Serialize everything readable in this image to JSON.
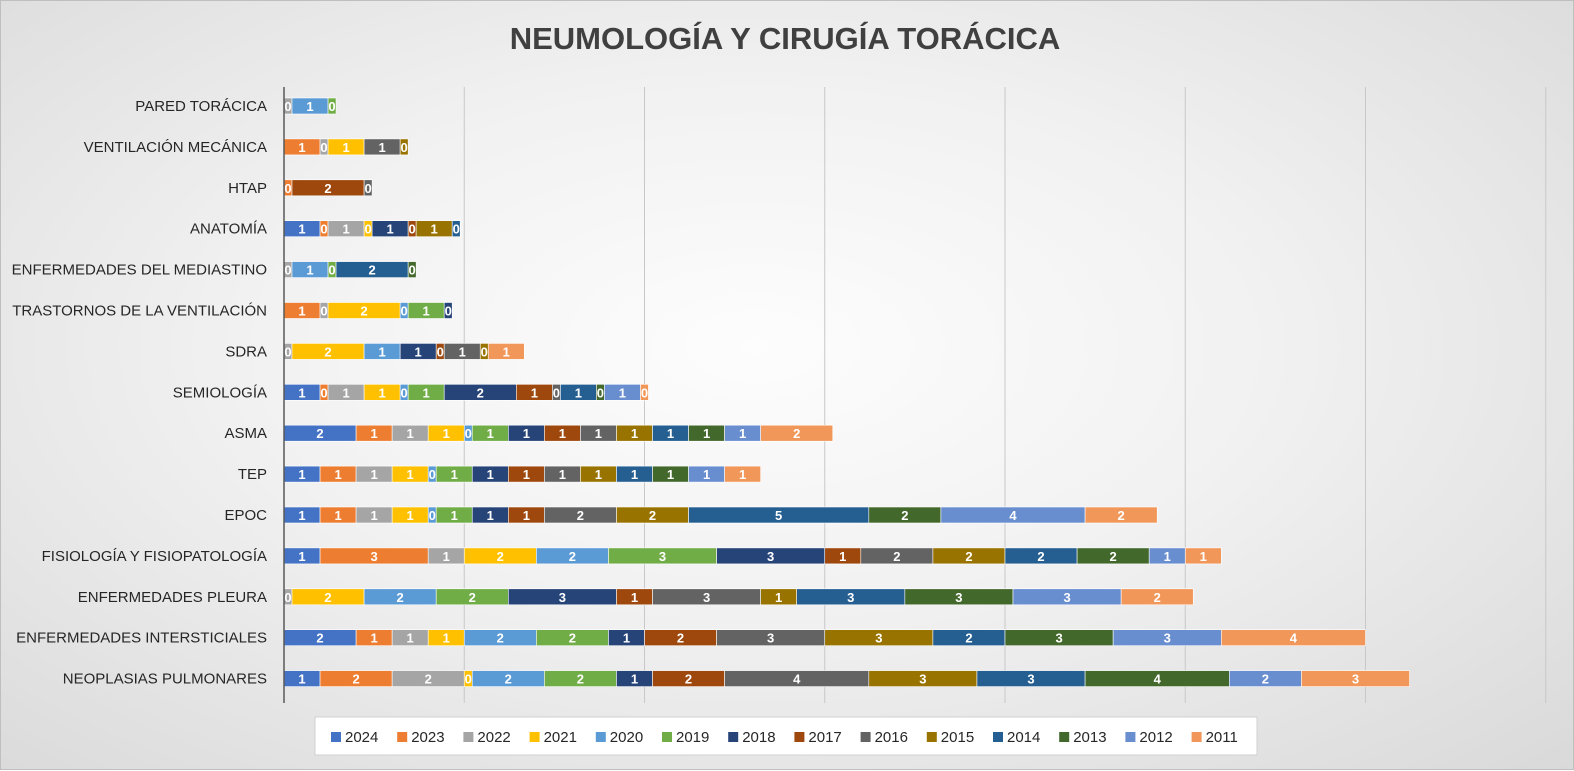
{
  "chart_data": {
    "type": "bar",
    "orientation": "horizontal",
    "stacked": true,
    "title": "NEUMOLOGÍA Y CIRUGÍA TORÁCICA",
    "xlabel": "",
    "ylabel": "",
    "xlim": [
      0,
      36
    ],
    "grid": true,
    "legend_position": "bottom",
    "categories": [
      "PARED TORÁCICA",
      "VENTILACIÓN MECÁNICA",
      "HTAP",
      "ANATOMÍA",
      "ENFERMEDADES DEL MEDIASTINO",
      "TRASTORNOS DE LA VENTILACIÓN",
      "SDRA",
      "SEMIOLOGÍA",
      "ASMA",
      "TEP",
      "EPOC",
      "FISIOLOGÍA Y FISIOPATOLOGÍA",
      "ENFERMEDADES PLEURA",
      "ENFERMEDADES INTERSTICIALES",
      "NEOPLASIAS PULMONARES"
    ],
    "series": [
      {
        "name": "2024",
        "color": "#4472C4",
        "values": [
          null,
          null,
          null,
          1,
          null,
          null,
          null,
          1,
          2,
          1,
          1,
          1,
          null,
          2,
          1
        ],
        "labels": [
          null,
          null,
          null,
          "1",
          null,
          null,
          null,
          "1",
          "2",
          "1",
          "1",
          "1",
          null,
          "2",
          "1"
        ]
      },
      {
        "name": "2023",
        "color": "#ED7D31",
        "values": [
          null,
          1,
          0,
          0,
          null,
          1,
          null,
          0,
          1,
          1,
          1,
          3,
          null,
          1,
          2
        ],
        "labels": [
          null,
          "1",
          "0",
          "0",
          null,
          "1",
          null,
          "0",
          "1",
          "1",
          "1",
          "3",
          null,
          "1",
          "2"
        ]
      },
      {
        "name": "2022",
        "color": "#A5A5A5",
        "values": [
          0,
          0,
          null,
          1,
          0,
          0,
          0,
          1,
          1,
          1,
          1,
          1,
          0,
          1,
          2
        ],
        "labels": [
          "0",
          "0",
          null,
          "1",
          "0",
          "0",
          "0",
          "1",
          "1",
          "1",
          "1",
          "1",
          "0",
          "1",
          "2"
        ]
      },
      {
        "name": "2021",
        "color": "#FFC000",
        "values": [
          null,
          1,
          null,
          0,
          null,
          2,
          2,
          1,
          1,
          1,
          1,
          2,
          2,
          1,
          0
        ],
        "labels": [
          null,
          "1",
          null,
          "0",
          null,
          "2",
          "2",
          "1",
          "1",
          "1",
          "1",
          "2",
          "2",
          "1",
          "0"
        ]
      },
      {
        "name": "2020",
        "color": "#5B9BD5",
        "values": [
          1,
          null,
          null,
          null,
          1,
          0,
          1,
          0,
          0,
          0,
          0,
          2,
          2,
          2,
          2
        ],
        "labels": [
          "1",
          null,
          null,
          null,
          "1",
          "0",
          "1",
          "0",
          "0",
          "0",
          "0",
          "2",
          "2",
          "2",
          "2"
        ]
      },
      {
        "name": "2019",
        "color": "#70AD47",
        "values": [
          0,
          null,
          null,
          null,
          0,
          1,
          null,
          1,
          1,
          1,
          1,
          3,
          2,
          2,
          2
        ],
        "labels": [
          "0",
          null,
          null,
          null,
          "0",
          "1",
          null,
          "1",
          "1",
          "1",
          "1",
          "3",
          "2",
          "2",
          "2"
        ]
      },
      {
        "name": "2018",
        "color": "#264478",
        "values": [
          null,
          null,
          null,
          1,
          null,
          0,
          1,
          2,
          1,
          1,
          1,
          3,
          3,
          1,
          1
        ],
        "labels": [
          null,
          null,
          null,
          "1",
          null,
          "0",
          "1",
          "2",
          "1",
          "1",
          "1",
          "3",
          "3",
          "1",
          "1"
        ]
      },
      {
        "name": "2017",
        "color": "#9E480E",
        "values": [
          null,
          null,
          2,
          0,
          null,
          null,
          0,
          1,
          1,
          1,
          1,
          1,
          1,
          2,
          2
        ],
        "labels": [
          null,
          null,
          "2",
          "0",
          null,
          null,
          "0",
          "1",
          "1",
          "1",
          "1",
          "1",
          "1",
          "2",
          "2"
        ]
      },
      {
        "name": "2016",
        "color": "#636363",
        "values": [
          null,
          1,
          0,
          null,
          null,
          null,
          1,
          0,
          1,
          1,
          2,
          2,
          3,
          3,
          4
        ],
        "labels": [
          null,
          "1",
          "0",
          null,
          null,
          null,
          "1",
          "0",
          "1",
          "1",
          "2",
          "2",
          "3",
          "3",
          "4"
        ]
      },
      {
        "name": "2015",
        "color": "#997300",
        "values": [
          null,
          0,
          null,
          1,
          null,
          null,
          0,
          null,
          1,
          1,
          2,
          2,
          1,
          3,
          3
        ],
        "labels": [
          null,
          "0",
          null,
          "1",
          null,
          null,
          "0",
          null,
          "1",
          "1",
          "2",
          "2",
          "1",
          "3",
          "3"
        ]
      },
      {
        "name": "2014",
        "color": "#255E91",
        "values": [
          null,
          null,
          null,
          0,
          2,
          null,
          null,
          1,
          1,
          1,
          5,
          2,
          3,
          2,
          3
        ],
        "labels": [
          null,
          null,
          null,
          "0",
          "2",
          null,
          null,
          "1",
          "1",
          "1",
          "5",
          "2",
          "3",
          "2",
          "3"
        ]
      },
      {
        "name": "2013",
        "color": "#43682B",
        "values": [
          null,
          null,
          null,
          null,
          0,
          null,
          null,
          0,
          1,
          1,
          2,
          2,
          3,
          3,
          4
        ],
        "labels": [
          null,
          null,
          null,
          null,
          "0",
          null,
          null,
          "0",
          "1",
          "1",
          "2",
          "2",
          "3",
          "3",
          "4"
        ]
      },
      {
        "name": "2012",
        "color": "#698ED0",
        "values": [
          null,
          null,
          null,
          null,
          null,
          null,
          null,
          1,
          1,
          1,
          4,
          1,
          3,
          3,
          2
        ],
        "labels": [
          null,
          null,
          null,
          null,
          null,
          null,
          null,
          "1",
          "1",
          "1",
          "4",
          "1",
          "3",
          "3",
          "2"
        ]
      },
      {
        "name": "2011",
        "color": "#F1975A",
        "values": [
          null,
          null,
          null,
          null,
          null,
          null,
          1,
          0,
          2,
          1,
          2,
          1,
          2,
          4,
          3
        ],
        "labels": [
          null,
          null,
          null,
          null,
          null,
          null,
          "1",
          "0",
          "2",
          "1",
          "2",
          "1",
          "2",
          "4",
          "3"
        ]
      }
    ]
  }
}
